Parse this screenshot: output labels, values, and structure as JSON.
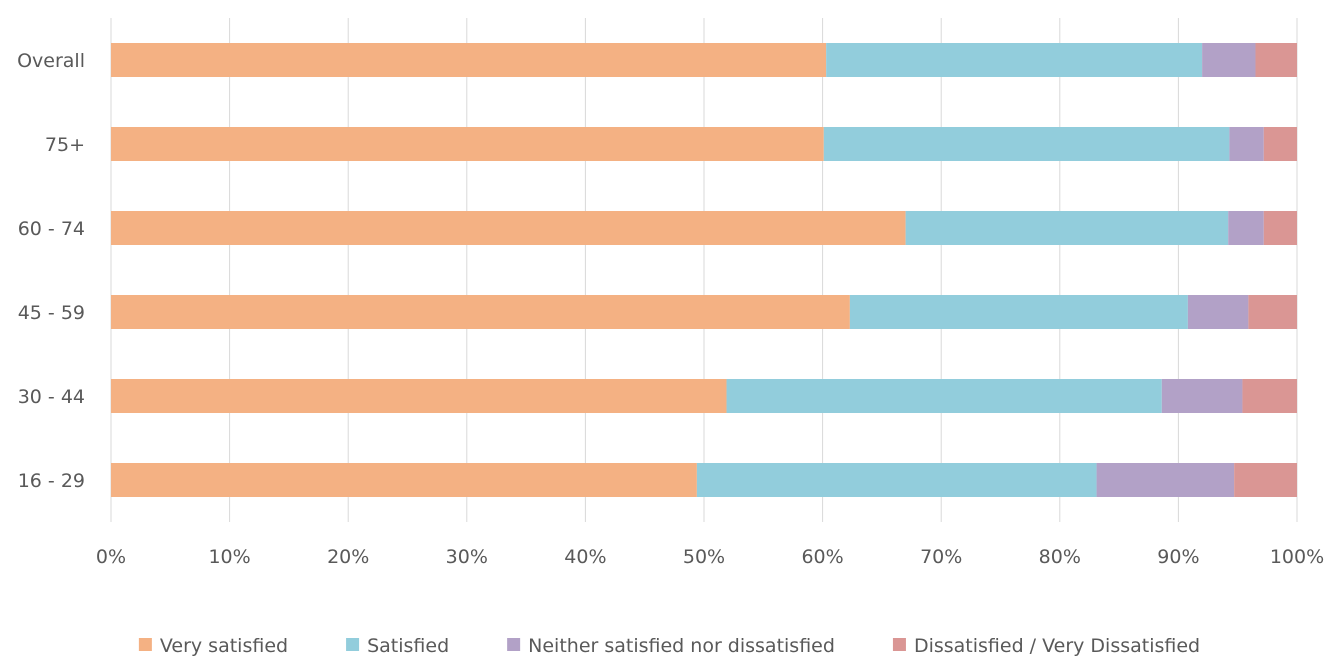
{
  "chart_data": {
    "type": "bar",
    "orientation": "horizontal",
    "stacked": true,
    "categories": [
      "Overall",
      "75+",
      "60 - 74",
      "45 - 59",
      "30 - 44",
      "16 - 29"
    ],
    "series": [
      {
        "name": "Very satisfied",
        "color": "#F4B183",
        "values": [
          60.3,
          60.1,
          67.0,
          62.3,
          51.9,
          49.4
        ]
      },
      {
        "name": "Satisfied",
        "color": "#92CDDC",
        "values": [
          31.7,
          34.2,
          27.2,
          28.5,
          36.7,
          33.7
        ]
      },
      {
        "name": "Neither satisfied nor dissatisfied",
        "color": "#B2A1C7",
        "values": [
          4.5,
          2.9,
          3.0,
          5.1,
          6.8,
          11.6
        ]
      },
      {
        "name": "Dissatisfied / Very Dissatisfied",
        "color": "#DA9694",
        "values": [
          3.5,
          2.8,
          2.8,
          4.1,
          4.6,
          5.3
        ]
      }
    ],
    "x_ticks": [
      "0%",
      "10%",
      "20%",
      "30%",
      "40%",
      "50%",
      "60%",
      "70%",
      "80%",
      "90%",
      "100%"
    ],
    "xlim": [
      0,
      100
    ],
    "grid": true,
    "legend_position": "bottom",
    "title": "",
    "xlabel": "",
    "ylabel": ""
  }
}
